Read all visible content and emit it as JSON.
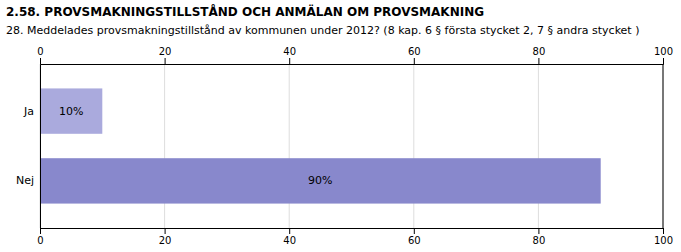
{
  "chart_data": {
    "type": "bar",
    "orientation": "horizontal",
    "title": "2.58. PROVSMAKNINGSTILLSTÅND OCH ANMÄLAN OM PROVSMAKNING",
    "subtitle": "28. Meddelades provsmakningstillstånd av kommunen under 2012? (8 kap. 6 § första stycket 2, 7 § andra stycket )",
    "categories": [
      "Ja",
      "Nej"
    ],
    "values": [
      10,
      90
    ],
    "value_labels": [
      "10%",
      "90%"
    ],
    "data_labels": true,
    "colors": [
      "#aaaadd",
      "#8888cc"
    ],
    "xlim": [
      0,
      100
    ],
    "xticks": [
      0,
      20,
      40,
      60,
      80,
      100
    ],
    "grid": true
  }
}
